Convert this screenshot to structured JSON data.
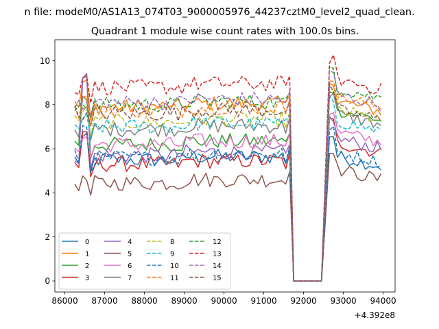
{
  "suptitle": "n file: modeM0/AS1A13_074T03_9000005976_44237cztM0_level2_quad_clean.",
  "chart_data": {
    "type": "line",
    "title": "Quadrant 1 module wise count rates with 100.0s bins.",
    "xlabel": "",
    "ylabel": "",
    "xlim": [
      85750,
      94300
    ],
    "ylim": [
      -0.5,
      10.95
    ],
    "x_ticks": [
      86000,
      87000,
      88000,
      89000,
      90000,
      91000,
      92000,
      93000,
      94000
    ],
    "x_tick_labels": [
      "86000",
      "87000",
      "88000",
      "89000",
      "90000",
      "91000",
      "92000",
      "93000",
      "94000"
    ],
    "y_ticks": [
      0,
      2,
      4,
      6,
      8,
      10
    ],
    "y_tick_labels": [
      "0",
      "2",
      "4",
      "6",
      "8",
      "10"
    ],
    "x_offset_label": "+4.392e8",
    "grid": false,
    "legend_position": "lower left",
    "legend_columns": 4,
    "gap": {
      "x_start": 91650,
      "x_end": 92550,
      "level": 0
    },
    "segments": [
      {
        "x_start": 86250,
        "x_end": 91650,
        "step": 100
      },
      {
        "x_start": 92550,
        "x_end": 93950,
        "step": 100
      }
    ],
    "series": [
      {
        "name": "0",
        "color": "#1f77b4",
        "dash": "solid",
        "level": 5.5,
        "level2": 5.7,
        "spike": 6.5
      },
      {
        "name": "1",
        "color": "#ff7f0e",
        "dash": "solid",
        "level": 7.9,
        "level2": 8.2,
        "spike": 9.0
      },
      {
        "name": "2",
        "color": "#2ca02c",
        "dash": "solid",
        "level": 6.2,
        "level2": 7.8,
        "spike": 9.3
      },
      {
        "name": "3",
        "color": "#d62728",
        "dash": "solid",
        "level": 5.3,
        "level2": 6.3,
        "spike": 6.6
      },
      {
        "name": "4",
        "color": "#9467bd",
        "dash": "solid",
        "level": 5.7,
        "level2": 6.5,
        "spike": 9.3
      },
      {
        "name": "5",
        "color": "#8c564b",
        "dash": "solid",
        "level": 4.45,
        "level2": 5.1,
        "spike": 4.6
      },
      {
        "name": "6",
        "color": "#e377c2",
        "dash": "solid",
        "level": 6.2,
        "level2": 6.8,
        "spike": 6.5
      },
      {
        "name": "7",
        "color": "#7f7f7f",
        "dash": "solid",
        "level": 6.9,
        "level2": 7.6,
        "spike": 8.2
      },
      {
        "name": "8",
        "color": "#bcbd22",
        "dash": "dashed",
        "level": 7.2,
        "level2": 7.8,
        "spike": 7.8
      },
      {
        "name": "9",
        "color": "#17becf",
        "dash": "dashed",
        "level": 7.0,
        "level2": 7.3,
        "spike": 7.4
      },
      {
        "name": "10",
        "color": "#1f77b4",
        "dash": "dashed",
        "level": 5.6,
        "level2": 5.9,
        "spike": 7.0
      },
      {
        "name": "11",
        "color": "#ff7f0e",
        "dash": "dashed",
        "level": 7.75,
        "level2": 8.4,
        "spike": 8.3
      },
      {
        "name": "12",
        "color": "#2ca02c",
        "dash": "dashed",
        "level": 8.0,
        "level2": 8.8,
        "spike": 8.0
      },
      {
        "name": "13",
        "color": "#d62728",
        "dash": "dashed",
        "level": 8.8,
        "level2": 9.2,
        "spike": 9.3
      },
      {
        "name": "14",
        "color": "#9467bd",
        "dash": "dashed",
        "level": 8.1,
        "level2": 8.5,
        "spike": 7.8
      },
      {
        "name": "15",
        "color": "#8c564b",
        "dash": "dashed",
        "level": 7.6,
        "level2": 7.8,
        "spike": 7.5
      }
    ]
  }
}
